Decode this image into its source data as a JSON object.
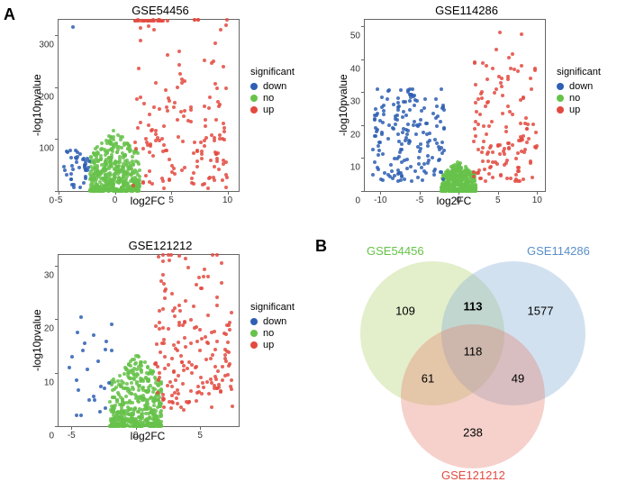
{
  "labels": {
    "A": "A",
    "B": "B"
  },
  "legend": {
    "title": "significant",
    "items": [
      {
        "key": "down",
        "label": "down",
        "color": "#2E5FB3"
      },
      {
        "key": "no",
        "label": "no",
        "color": "#66C24A"
      },
      {
        "key": "up",
        "label": "up",
        "color": "#E34A3F"
      }
    ]
  },
  "axes": {
    "x": "log2FC",
    "y": "-log10pvalue"
  },
  "plots": [
    {
      "id": "gse54456",
      "title": "GSE54456",
      "xlim": [
        -5,
        11
      ],
      "ylim": [
        0,
        330
      ],
      "xticks": [
        -5,
        0,
        5,
        10
      ],
      "yticks": [
        0,
        100,
        200,
        300
      ]
    },
    {
      "id": "gse114286",
      "title": "GSE114286",
      "xlim": [
        -12,
        11
      ],
      "ylim": [
        0,
        52
      ],
      "xticks": [
        -10,
        -5,
        0,
        5,
        10
      ],
      "yticks": [
        0,
        10,
        20,
        30,
        40,
        50
      ]
    },
    {
      "id": "gse121212",
      "title": "GSE121212",
      "xlim": [
        -6,
        8
      ],
      "ylim": [
        0,
        32
      ],
      "xticks": [
        -5,
        0,
        5
      ],
      "yticks": [
        0,
        10,
        20,
        30
      ]
    }
  ],
  "venn": {
    "sets": [
      {
        "id": "gse54456",
        "label": "GSE54456",
        "color": "#AFCF6B",
        "label_color": "#66C24A"
      },
      {
        "id": "gse114286",
        "label": "GSE114286",
        "color": "#7FA9D4",
        "label_color": "#5A8FC7"
      },
      {
        "id": "gse121212",
        "label": "GSE121212",
        "color": "#E67A6B",
        "label_color": "#E34A3F"
      }
    ],
    "values": {
      "a": 109,
      "b": 1577,
      "c": 238,
      "ab": 113,
      "ac": 61,
      "bc": 49,
      "abc": 118
    }
  },
  "colors": {
    "down": "#2E5FB3",
    "no": "#66C24A",
    "up": "#E34A3F"
  }
}
